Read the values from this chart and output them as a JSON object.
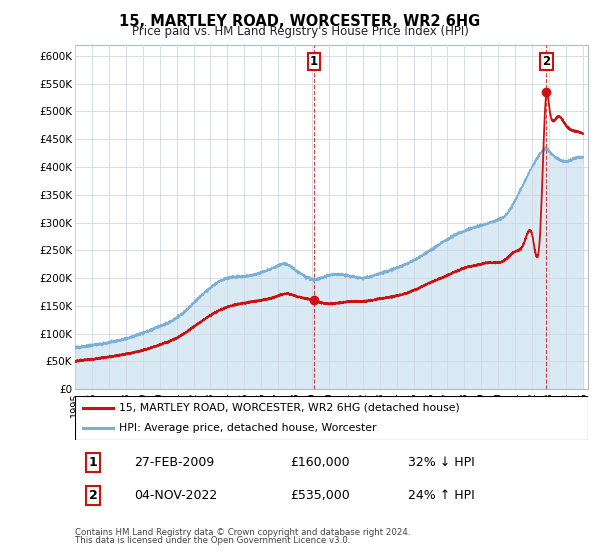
{
  "title": "15, MARTLEY ROAD, WORCESTER, WR2 6HG",
  "subtitle": "Price paid vs. HM Land Registry's House Price Index (HPI)",
  "hpi_color": "#7bafd4",
  "hpi_fill_color": "#daeaf5",
  "price_color": "#cc1111",
  "ylim": [
    0,
    620000
  ],
  "yticks": [
    0,
    50000,
    100000,
    150000,
    200000,
    250000,
    300000,
    350000,
    400000,
    450000,
    500000,
    550000,
    600000
  ],
  "ytick_labels": [
    "£0",
    "£50K",
    "£100K",
    "£150K",
    "£200K",
    "£250K",
    "£300K",
    "£350K",
    "£400K",
    "£450K",
    "£500K",
    "£550K",
    "£600K"
  ],
  "xlim_start": 1995.0,
  "xlim_end": 2025.3,
  "sale1_x": 2009.12,
  "sale1_y": 160000,
  "sale2_x": 2022.84,
  "sale2_y": 535000,
  "sale1_date": "27-FEB-2009",
  "sale1_price": "£160,000",
  "sale1_hpi": "32% ↓ HPI",
  "sale2_date": "04-NOV-2022",
  "sale2_price": "£535,000",
  "sale2_hpi": "24% ↑ HPI",
  "legend_line1": "15, MARTLEY ROAD, WORCESTER, WR2 6HG (detached house)",
  "legend_line2": "HPI: Average price, detached house, Worcester",
  "footnote1": "Contains HM Land Registry data © Crown copyright and database right 2024.",
  "footnote2": "This data is licensed under the Open Government Licence v3.0.",
  "bg_color": "#ffffff",
  "grid_color": "#d0d8e0",
  "spine_color": "#b0b8c0"
}
